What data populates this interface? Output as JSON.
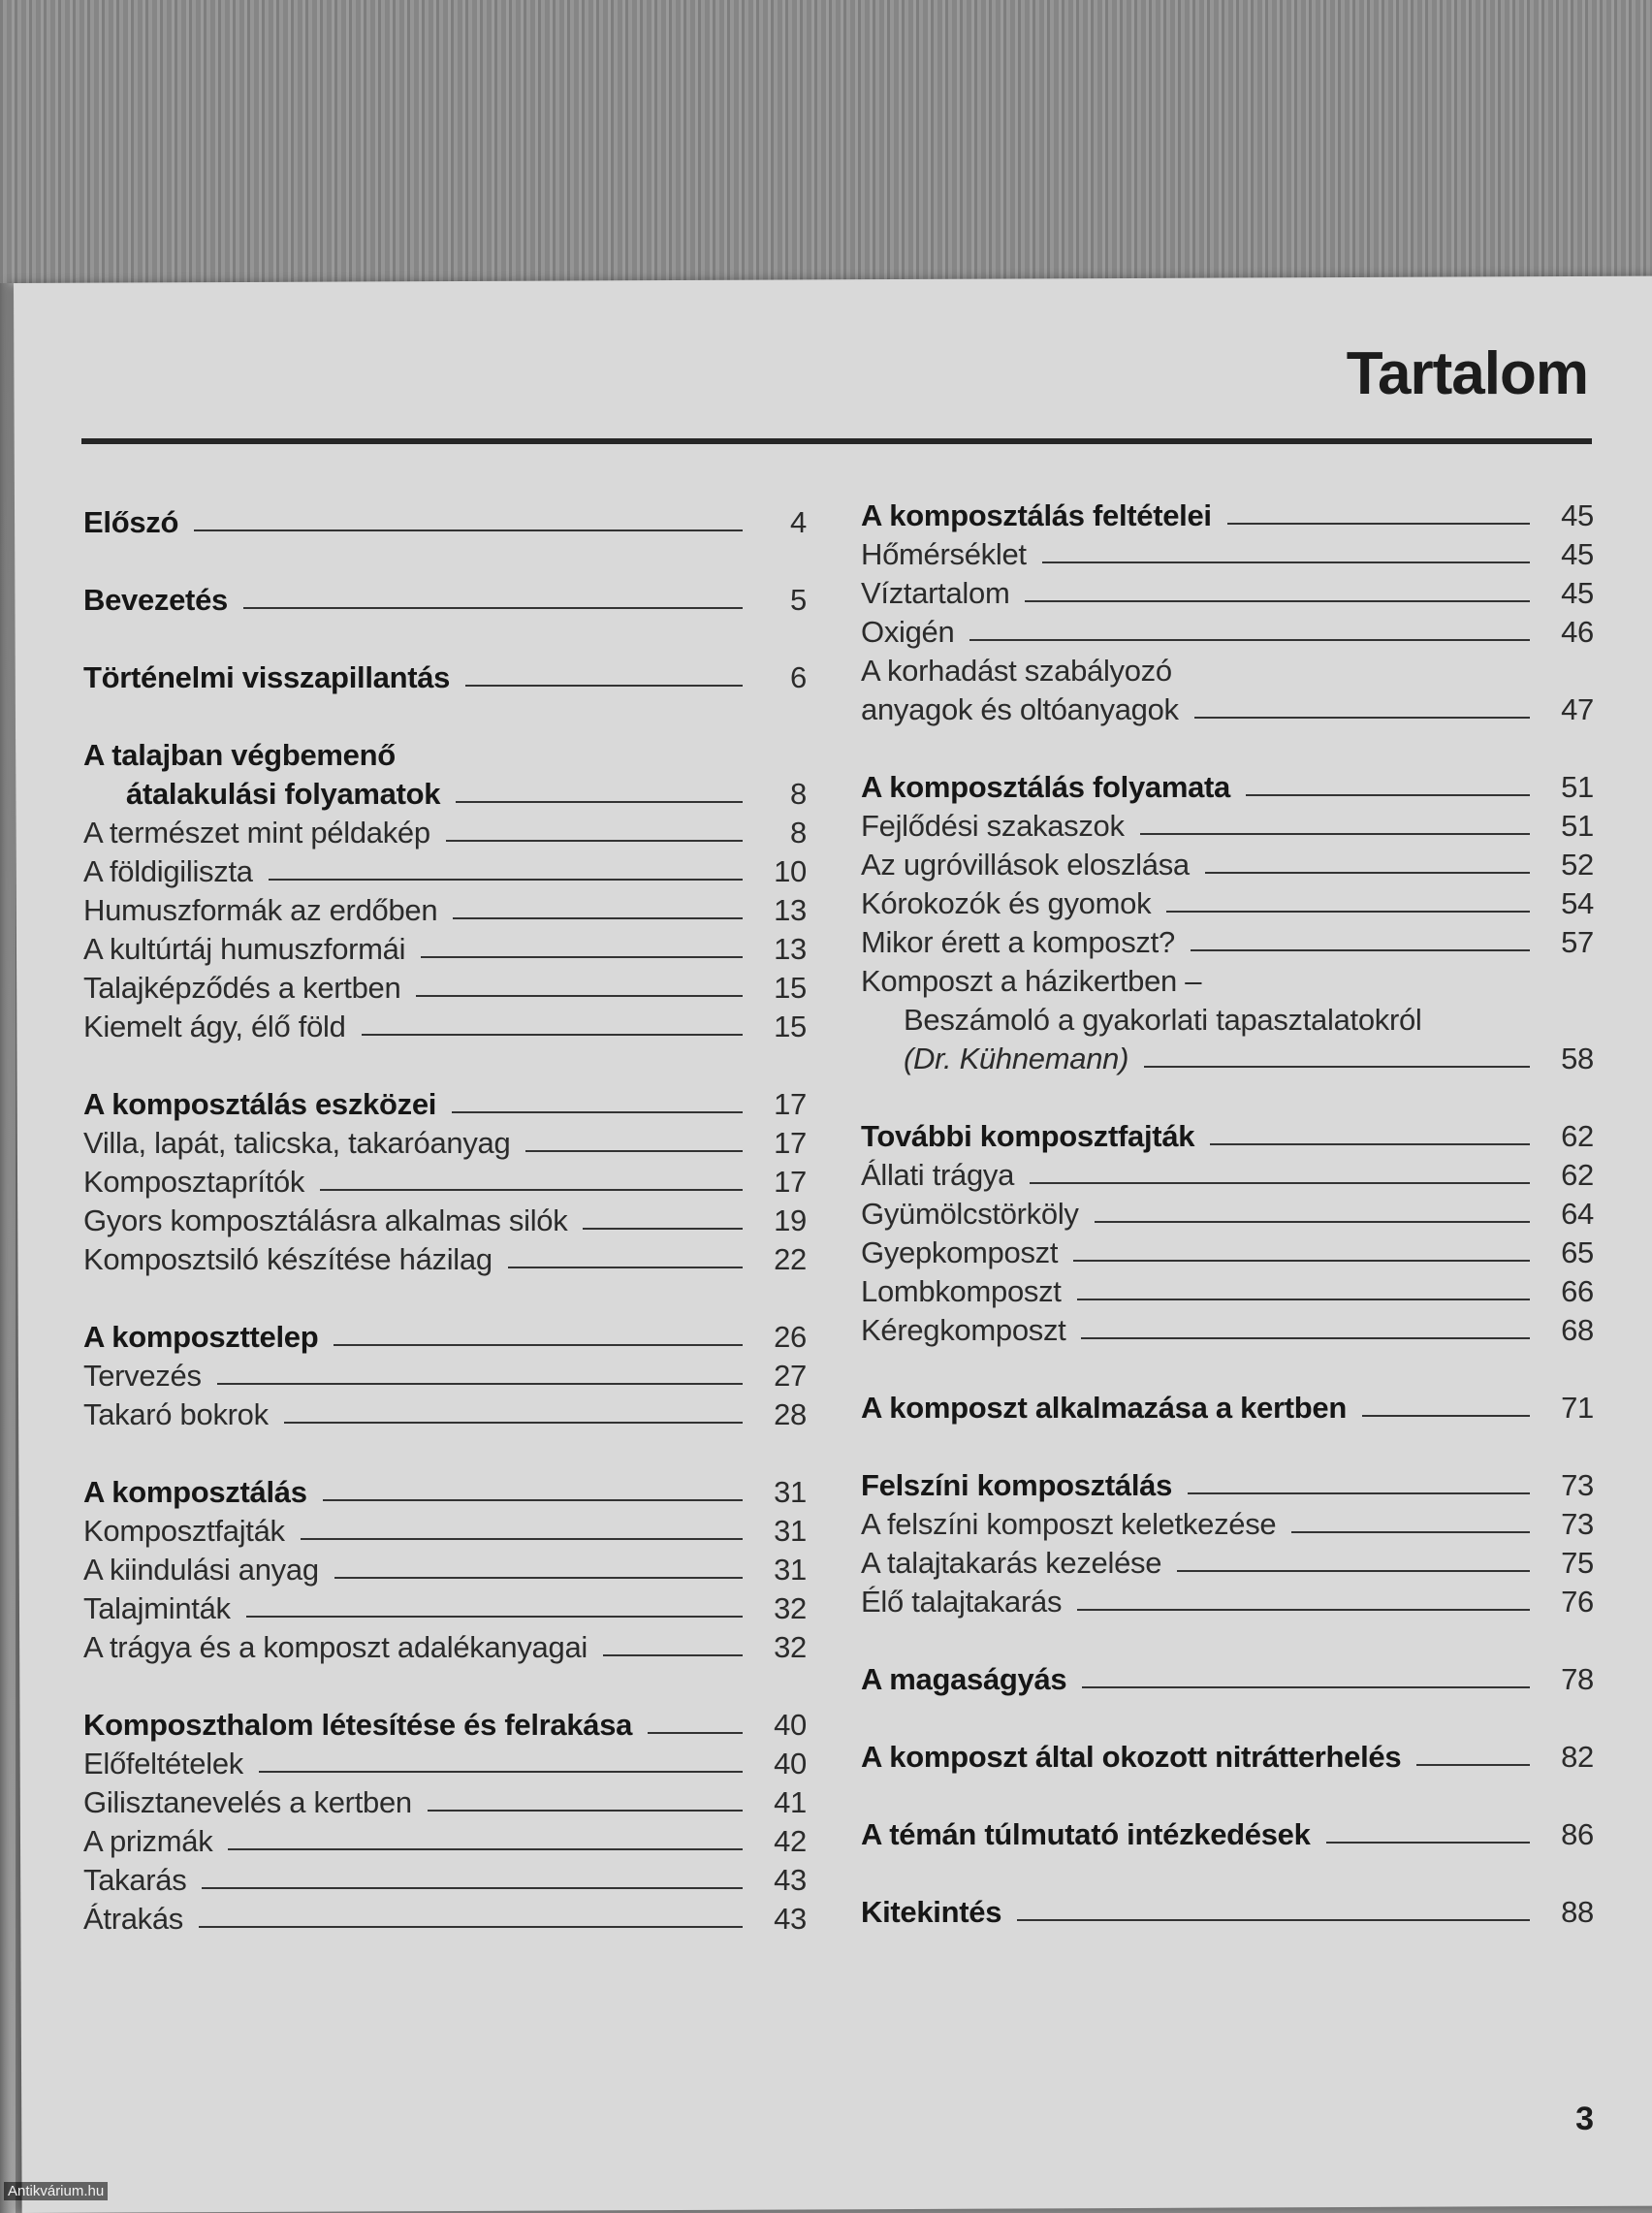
{
  "title": "Tartalom",
  "page_number": "3",
  "watermark": "Antikvárium.hu",
  "columns": [
    {
      "groups": [
        {
          "entries": [
            {
              "lines": [
                {
                  "text": "Előszó"
                }
              ],
              "page": "4",
              "bold": true
            }
          ]
        },
        {
          "entries": [
            {
              "lines": [
                {
                  "text": "Bevezetés"
                }
              ],
              "page": "5",
              "bold": true
            }
          ]
        },
        {
          "entries": [
            {
              "lines": [
                {
                  "text": "Történelmi visszapillantás"
                }
              ],
              "page": "6",
              "bold": true
            }
          ]
        },
        {
          "entries": [
            {
              "lines": [
                {
                  "text": "A talajban végbemenő"
                },
                {
                  "text": "átalakulási folyamatok",
                  "indent": true
                }
              ],
              "page": "8",
              "bold": true
            },
            {
              "lines": [
                {
                  "text": "A természet mint példakép"
                }
              ],
              "page": "8"
            },
            {
              "lines": [
                {
                  "text": "A földigiliszta"
                }
              ],
              "page": "10"
            },
            {
              "lines": [
                {
                  "text": "Humuszformák az erdőben"
                }
              ],
              "page": "13"
            },
            {
              "lines": [
                {
                  "text": "A kultúrtáj humuszformái"
                }
              ],
              "page": "13"
            },
            {
              "lines": [
                {
                  "text": "Talajképződés a kertben"
                }
              ],
              "page": "15"
            },
            {
              "lines": [
                {
                  "text": "Kiemelt ágy, élő föld"
                }
              ],
              "page": "15"
            }
          ]
        },
        {
          "entries": [
            {
              "lines": [
                {
                  "text": "A komposztálás eszközei"
                }
              ],
              "page": "17",
              "bold": true
            },
            {
              "lines": [
                {
                  "text": "Villa, lapát, talicska, takaróanyag"
                }
              ],
              "page": "17"
            },
            {
              "lines": [
                {
                  "text": "Komposztaprítók"
                }
              ],
              "page": "17"
            },
            {
              "lines": [
                {
                  "text": "Gyors komposztálásra alkalmas silók"
                }
              ],
              "page": "19"
            },
            {
              "lines": [
                {
                  "text": "Komposztsiló készítése házilag"
                }
              ],
              "page": "22"
            }
          ]
        },
        {
          "entries": [
            {
              "lines": [
                {
                  "text": "A komposzttelep"
                }
              ],
              "page": "26",
              "bold": true
            },
            {
              "lines": [
                {
                  "text": "Tervezés"
                }
              ],
              "page": "27"
            },
            {
              "lines": [
                {
                  "text": "Takaró bokrok"
                }
              ],
              "page": "28"
            }
          ]
        },
        {
          "entries": [
            {
              "lines": [
                {
                  "text": "A komposztálás"
                }
              ],
              "page": "31",
              "bold": true
            },
            {
              "lines": [
                {
                  "text": "Komposztfajták"
                }
              ],
              "page": "31"
            },
            {
              "lines": [
                {
                  "text": "A kiindulási anyag"
                }
              ],
              "page": "31"
            },
            {
              "lines": [
                {
                  "text": "Talajminták"
                }
              ],
              "page": "32"
            },
            {
              "lines": [
                {
                  "text": "A trágya és a komposzt adalékanyagai"
                }
              ],
              "page": "32"
            }
          ]
        },
        {
          "entries": [
            {
              "lines": [
                {
                  "text": "Komposzthalom létesítése és felrakása"
                }
              ],
              "page": "40",
              "bold": true
            },
            {
              "lines": [
                {
                  "text": "Előfeltételek"
                }
              ],
              "page": "40"
            },
            {
              "lines": [
                {
                  "text": "Gilisztanevelés a kertben"
                }
              ],
              "page": "41"
            },
            {
              "lines": [
                {
                  "text": "A prizmák"
                }
              ],
              "page": "42"
            },
            {
              "lines": [
                {
                  "text": "Takarás"
                }
              ],
              "page": "43"
            },
            {
              "lines": [
                {
                  "text": "Átrakás"
                }
              ],
              "page": "43"
            }
          ]
        }
      ]
    },
    {
      "groups": [
        {
          "entries": [
            {
              "lines": [
                {
                  "text": "A komposztálás feltételei"
                }
              ],
              "page": "45",
              "bold": true
            },
            {
              "lines": [
                {
                  "text": "Hőmérséklet"
                }
              ],
              "page": "45"
            },
            {
              "lines": [
                {
                  "text": "Víztartalom"
                }
              ],
              "page": "45"
            },
            {
              "lines": [
                {
                  "text": "Oxigén"
                }
              ],
              "page": "46"
            },
            {
              "lines": [
                {
                  "text": "A korhadást szabályozó"
                },
                {
                  "text": "anyagok és oltóanyagok"
                }
              ],
              "page": "47"
            }
          ]
        },
        {
          "entries": [
            {
              "lines": [
                {
                  "text": "A komposztálás folyamata"
                }
              ],
              "page": "51",
              "bold": true
            },
            {
              "lines": [
                {
                  "text": "Fejlődési szakaszok"
                }
              ],
              "page": "51"
            },
            {
              "lines": [
                {
                  "text": "Az ugróvillások eloszlása"
                }
              ],
              "page": "52"
            },
            {
              "lines": [
                {
                  "text": "Kórokozók és gyomok"
                }
              ],
              "page": "54"
            },
            {
              "lines": [
                {
                  "text": "Mikor érett a komposzt?"
                }
              ],
              "page": "57"
            },
            {
              "lines": [
                {
                  "text": "Komposzt a házikertben –"
                },
                {
                  "text": "Beszámoló a gyakorlati tapasztalatokról",
                  "indent": true
                },
                {
                  "text": "(Dr. Kühnemann)",
                  "indent": true,
                  "italic": true
                }
              ],
              "page": "58"
            }
          ]
        },
        {
          "entries": [
            {
              "lines": [
                {
                  "text": "További komposztfajták"
                }
              ],
              "page": "62",
              "bold": true
            },
            {
              "lines": [
                {
                  "text": "Állati trágya"
                }
              ],
              "page": "62"
            },
            {
              "lines": [
                {
                  "text": "Gyümölcstörköly"
                }
              ],
              "page": "64"
            },
            {
              "lines": [
                {
                  "text": "Gyepkomposzt"
                }
              ],
              "page": "65"
            },
            {
              "lines": [
                {
                  "text": "Lombkomposzt"
                }
              ],
              "page": "66"
            },
            {
              "lines": [
                {
                  "text": "Kéregkomposzt"
                }
              ],
              "page": "68"
            }
          ]
        },
        {
          "entries": [
            {
              "lines": [
                {
                  "text": "A komposzt alkalmazása a kertben"
                }
              ],
              "page": "71",
              "bold": true
            }
          ]
        },
        {
          "entries": [
            {
              "lines": [
                {
                  "text": "Felszíni komposztálás"
                }
              ],
              "page": "73",
              "bold": true
            },
            {
              "lines": [
                {
                  "text": "A felszíni komposzt keletkezése"
                }
              ],
              "page": "73"
            },
            {
              "lines": [
                {
                  "text": "A talajtakarás kezelése"
                }
              ],
              "page": "75"
            },
            {
              "lines": [
                {
                  "text": "Élő talajtakarás"
                }
              ],
              "page": "76"
            }
          ]
        },
        {
          "entries": [
            {
              "lines": [
                {
                  "text": "A magaságyás"
                }
              ],
              "page": "78",
              "bold": true
            }
          ]
        },
        {
          "entries": [
            {
              "lines": [
                {
                  "text": "A komposzt által okozott nitrátterhelés"
                }
              ],
              "page": "82",
              "bold": true
            }
          ]
        },
        {
          "entries": [
            {
              "lines": [
                {
                  "text": "A témán túlmutató intézkedések"
                }
              ],
              "page": "86",
              "bold": true
            }
          ]
        },
        {
          "entries": [
            {
              "lines": [
                {
                  "text": "Kitekintés"
                }
              ],
              "page": "88",
              "bold": true
            }
          ]
        }
      ]
    }
  ]
}
